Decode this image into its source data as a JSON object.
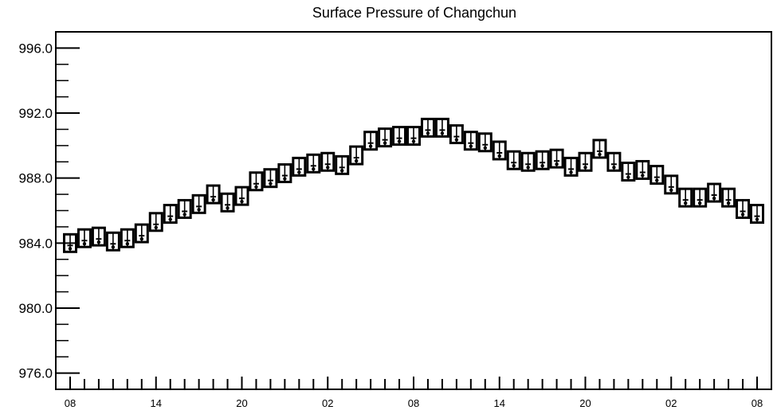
{
  "chart_data": {
    "type": "scatter",
    "title": "Surface Pressure of Changchun",
    "xlabel": "",
    "ylabel": "",
    "ylim": [
      975,
      997
    ],
    "yticks": [
      "976.0",
      "980.0",
      "984.0",
      "988.0",
      "992.0",
      "996.0"
    ],
    "yminor_step": 1,
    "xlim": [
      0,
      48
    ],
    "xticks": [
      {
        "x": 0,
        "label": "08"
      },
      {
        "x": 6,
        "label": "14"
      },
      {
        "x": 12,
        "label": "20"
      },
      {
        "x": 18,
        "label": "02"
      },
      {
        "x": 24,
        "label": "08"
      },
      {
        "x": 30,
        "label": "14"
      },
      {
        "x": 36,
        "label": "20"
      },
      {
        "x": 42,
        "label": "02"
      },
      {
        "x": 48,
        "label": "08"
      }
    ],
    "x_minor_ticks_per_hour": 1,
    "marker": "box-with-bar",
    "grid": false,
    "series": [
      {
        "x": [
          0,
          1,
          2,
          3,
          4,
          5,
          6,
          7,
          8,
          9,
          10,
          11,
          12,
          13,
          14,
          15,
          16,
          17,
          18,
          19,
          20,
          21,
          22,
          23,
          24,
          25,
          26,
          27,
          28,
          29,
          30,
          31,
          32,
          33,
          34,
          35,
          36,
          37,
          38,
          39,
          40,
          41,
          42,
          43,
          44,
          45,
          46,
          47,
          48
        ],
        "y": [
          984.0,
          984.3,
          984.4,
          984.1,
          984.3,
          984.6,
          985.3,
          985.8,
          986.1,
          986.4,
          987.0,
          986.5,
          986.9,
          987.8,
          988.0,
          988.3,
          988.7,
          988.9,
          989.0,
          988.8,
          989.4,
          990.3,
          990.5,
          990.6,
          990.6,
          991.1,
          991.1,
          990.7,
          990.3,
          990.2,
          989.7,
          989.1,
          989.0,
          989.1,
          989.2,
          988.7,
          989.0,
          989.8,
          989.0,
          988.4,
          988.5,
          988.2,
          987.6,
          986.8,
          986.8,
          987.1,
          986.8,
          986.1,
          985.8
        ]
      }
    ]
  }
}
